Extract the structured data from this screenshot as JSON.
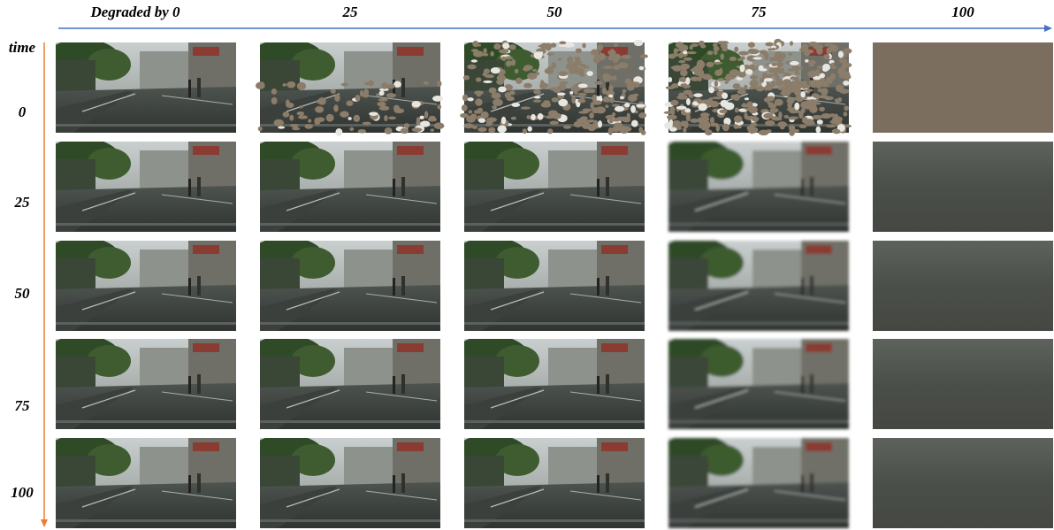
{
  "columns": [
    "Degraded by 0",
    "25",
    "50",
    "75",
    "100"
  ],
  "rows": {
    "axis_label": "time",
    "labels": [
      "0",
      "25",
      "50",
      "75",
      "100"
    ]
  }
}
